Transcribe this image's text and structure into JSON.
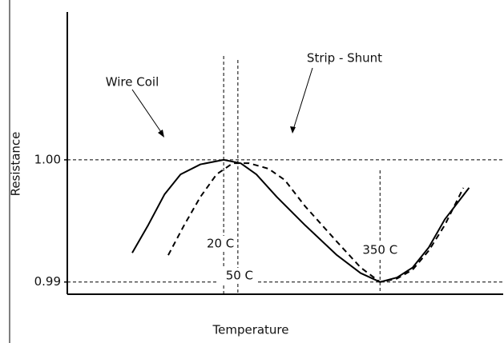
{
  "chart_data": {
    "type": "line",
    "xlabel": "Temperature",
    "ylabel": "Resistance",
    "xlim": [
      -310,
      610
    ],
    "ylim": [
      0.989,
      1.0121
    ],
    "yticks": [
      {
        "value": 1.0,
        "label": "1.00"
      },
      {
        "value": 0.99,
        "label": "0.99"
      }
    ],
    "grid": true,
    "annotations": [
      {
        "value": 20,
        "label": "20 C"
      },
      {
        "value": 50,
        "label": "50 C"
      },
      {
        "value": 350,
        "label": "350 C"
      }
    ],
    "series": [
      {
        "name": "Wire Coil",
        "color": "#000000",
        "dash": false,
        "x": [
          -173,
          -139,
          -105,
          -71,
          -29,
          20,
          56,
          89,
          132,
          191,
          259,
          309,
          350,
          386,
          419,
          453,
          487,
          538
        ],
        "values": [
          0.99239,
          0.99468,
          0.99716,
          0.99881,
          0.99963,
          1.0,
          0.99972,
          0.99881,
          0.99697,
          0.99468,
          0.9922,
          0.99073,
          0.99,
          0.99037,
          0.99119,
          0.99284,
          0.99514,
          0.99771
        ]
      },
      {
        "name": "Strip - Shunt",
        "color": "#000000",
        "dash": true,
        "x": [
          -97,
          -63,
          -29,
          5,
          39,
          74,
          115,
          149,
          191,
          259,
          309,
          350,
          386,
          419,
          453,
          487,
          526
        ],
        "values": [
          0.9922,
          0.99468,
          0.99697,
          0.99881,
          0.99972,
          0.99972,
          0.99927,
          0.99835,
          0.99624,
          0.9933,
          0.99119,
          0.99,
          0.99028,
          0.99101,
          0.99257,
          0.99468,
          0.99771
        ]
      }
    ]
  }
}
